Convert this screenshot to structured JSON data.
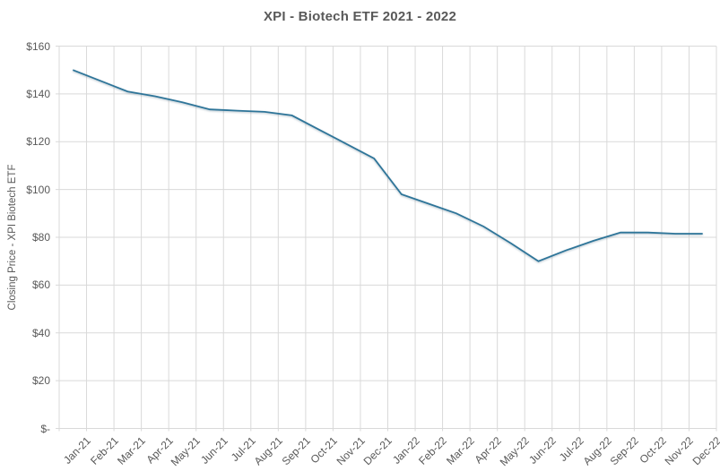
{
  "chart": {
    "title": "XPI - Biotech ETF 2021 - 2022",
    "y_axis_title": "Closing Price - XPI Biotech ETF"
  },
  "colors": {
    "line": "#2E7599",
    "gridline": "#D9D9D9",
    "text": "#595959",
    "background": "#FFFFFF"
  },
  "chart_data": {
    "type": "line",
    "title": "XPI - Biotech ETF 2021 - 2022",
    "xlabel": "",
    "ylabel": "Closing Price - XPI Biotech ETF",
    "categories": [
      "Jan-21",
      "Feb-21",
      "Mar-21",
      "Apr-21",
      "May-21",
      "Jun-21",
      "Jul-21",
      "Aug-21",
      "Sep-21",
      "Oct-21",
      "Nov-21",
      "Dec-21",
      "Jan-22",
      "Feb-22",
      "Mar-22",
      "Apr-22",
      "May-22",
      "Jun-22",
      "Jul-22",
      "Aug-22",
      "Sep-22",
      "Oct-22",
      "Nov-22",
      "Dec-22"
    ],
    "series": [
      {
        "name": "Closing Price - XPI Biotech ETF",
        "values": [
          150,
          145.5,
          141,
          139,
          136.5,
          133.5,
          133,
          132.5,
          131,
          125,
          119,
          113,
          98,
          94,
          90,
          84.5,
          77.5,
          70,
          74.5,
          78.5,
          82,
          82,
          81.5,
          81.5
        ]
      }
    ],
    "ylim": [
      0,
      160
    ],
    "ytick_step": 20,
    "ytick_labels": [
      "$-",
      "$20",
      "$40",
      "$60",
      "$80",
      "$100",
      "$120",
      "$140",
      "$160"
    ],
    "grid": true,
    "legend": false
  }
}
